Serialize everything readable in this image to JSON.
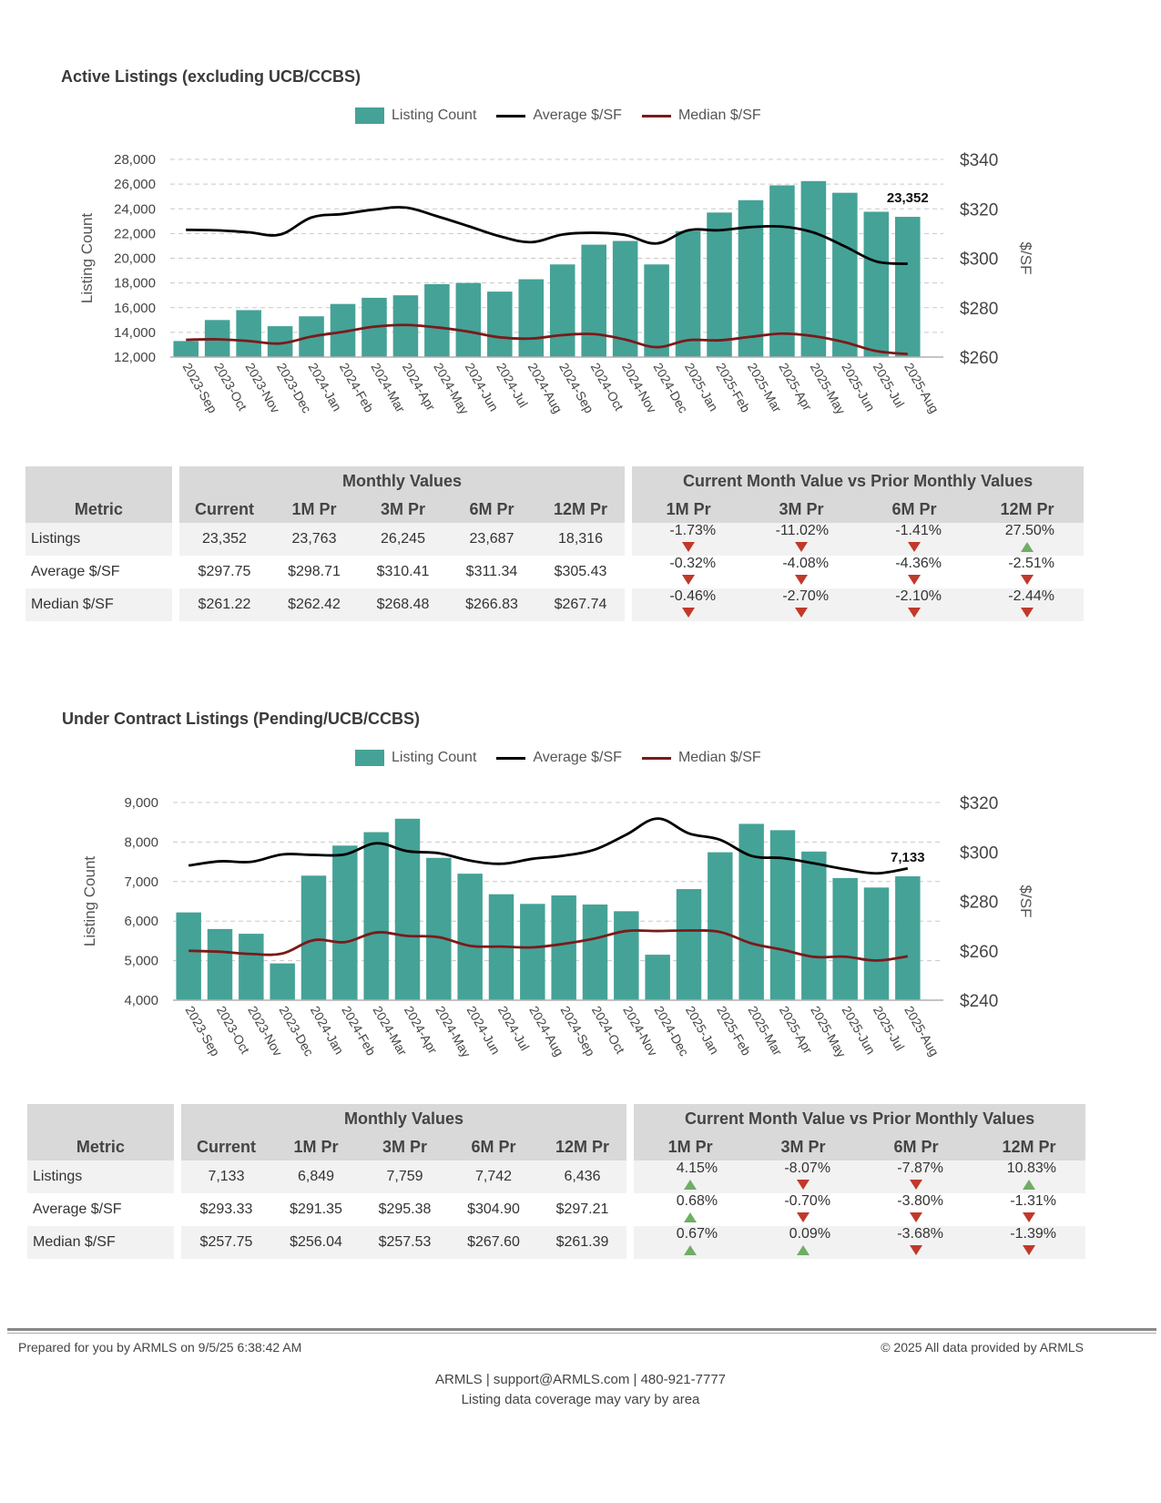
{
  "colors": {
    "bar": "#45a297",
    "average": "#000000",
    "median": "#7b1a1a",
    "up": "#70ad65",
    "down": "#c0392b"
  },
  "legend": {
    "bar_label": "Listing Count",
    "avg_label": "Average $/SF",
    "median_label": "Median $/SF"
  },
  "table_headers": {
    "metric": "Metric",
    "monthly_values": "Monthly Values",
    "comparison": "Current Month Value vs Prior Monthly Values",
    "current": "Current",
    "m1": "1M Pr",
    "m3": "3M Pr",
    "m6": "6M Pr",
    "m12": "12M Pr"
  },
  "chart_data": [
    {
      "type": "bar",
      "title": "Active Listings (excluding UCB/CCBS)",
      "categories": [
        "2023-Sep",
        "2023-Oct",
        "2023-Nov",
        "2023-Dec",
        "2024-Jan",
        "2024-Feb",
        "2024-Mar",
        "2024-Apr",
        "2024-May",
        "2024-Jun",
        "2024-Jul",
        "2024-Aug",
        "2024-Sep",
        "2024-Oct",
        "2024-Nov",
        "2024-Dec",
        "2025-Jan",
        "2025-Feb",
        "2025-Mar",
        "2025-Apr",
        "2025-May",
        "2025-Jun",
        "2025-Jul",
        "2025-Aug"
      ],
      "series": [
        {
          "name": "Listing Count",
          "type": "bar",
          "axis": "left",
          "values": [
            13300,
            15000,
            15800,
            14500,
            15300,
            16300,
            16800,
            17000,
            17900,
            18000,
            17300,
            18300,
            19500,
            21100,
            21400,
            19500,
            22200,
            23700,
            24700,
            25900,
            26245,
            25300,
            23763,
            23352
          ]
        },
        {
          "name": "Average $/SF",
          "type": "line",
          "axis": "right",
          "values": [
            311.5,
            311.3,
            310.5,
            309.6,
            316.5,
            317.9,
            319.7,
            320.5,
            317.0,
            313.0,
            308.9,
            306.5,
            309.6,
            310.3,
            309.4,
            306.0,
            311.3,
            311.34,
            312.6,
            312.8,
            310.41,
            304.8,
            298.71,
            297.75
          ]
        },
        {
          "name": "Median $/SF",
          "type": "line",
          "axis": "right",
          "values": [
            267.0,
            267.2,
            266.5,
            265.5,
            268.3,
            270.2,
            272.3,
            273.0,
            272.0,
            270.3,
            268.0,
            267.5,
            268.9,
            269.3,
            267.1,
            264.0,
            266.83,
            266.8,
            268.2,
            269.5,
            268.48,
            266.0,
            262.42,
            261.22
          ]
        }
      ],
      "ylabel": "Listing Count",
      "y2label": "$/SF",
      "ylim": [
        12000,
        28000
      ],
      "y2lim": [
        260,
        340
      ],
      "yticks": [
        "28,000",
        "26,000",
        "24,000",
        "22,000",
        "20,000",
        "18,000",
        "16,000",
        "14,000",
        "12,000"
      ],
      "y2ticks": [
        "$340",
        "$320",
        "$300",
        "$280",
        "$260"
      ],
      "annotation": "23,352",
      "grid": true,
      "legend": "top-center"
    },
    {
      "type": "bar",
      "title": "Under Contract Listings (Pending/UCB/CCBS)",
      "categories": [
        "2023-Sep",
        "2023-Oct",
        "2023-Nov",
        "2023-Dec",
        "2024-Jan",
        "2024-Feb",
        "2024-Mar",
        "2024-Apr",
        "2024-May",
        "2024-Jun",
        "2024-Jul",
        "2024-Aug",
        "2024-Sep",
        "2024-Oct",
        "2024-Nov",
        "2024-Dec",
        "2025-Jan",
        "2025-Feb",
        "2025-Mar",
        "2025-Apr",
        "2025-May",
        "2025-Jun",
        "2025-Jul",
        "2025-Aug"
      ],
      "series": [
        {
          "name": "Listing Count",
          "type": "bar",
          "axis": "left",
          "values": [
            6220,
            5800,
            5680,
            4930,
            7150,
            7910,
            8250,
            8590,
            7600,
            7200,
            6680,
            6436,
            6650,
            6420,
            6250,
            5150,
            6810,
            7742,
            8460,
            8300,
            7759,
            7090,
            6849,
            7133
          ]
        },
        {
          "name": "Average $/SF",
          "type": "line",
          "axis": "right",
          "values": [
            294.5,
            296.2,
            296.0,
            299.0,
            298.8,
            299.0,
            303.5,
            300.3,
            299.5,
            296.5,
            295.2,
            297.21,
            298.5,
            301.0,
            307.0,
            313.5,
            307.5,
            304.9,
            298.4,
            297.5,
            295.38,
            293.0,
            291.35,
            293.33
          ]
        },
        {
          "name": "Median $/SF",
          "type": "line",
          "axis": "right",
          "values": [
            260.0,
            259.6,
            258.7,
            258.9,
            264.3,
            263.5,
            267.4,
            266.0,
            265.5,
            262.0,
            261.7,
            261.39,
            262.8,
            265.0,
            268.0,
            268.0,
            268.2,
            267.6,
            263.0,
            260.4,
            257.53,
            257.6,
            256.04,
            257.75
          ]
        }
      ],
      "ylabel": "Listing Count",
      "y2label": "$/SF",
      "ylim": [
        4000,
        9000
      ],
      "y2lim": [
        240,
        320
      ],
      "yticks": [
        "9,000",
        "8,000",
        "7,000",
        "6,000",
        "5,000",
        "4,000"
      ],
      "y2ticks": [
        "$320",
        "$300",
        "$280",
        "$260",
        "$240"
      ],
      "annotation": "7,133",
      "grid": true,
      "legend": "top-center"
    }
  ],
  "tables": [
    {
      "rows": [
        {
          "metric": "Listings",
          "current": "23,352",
          "m1": "23,763",
          "m3": "26,245",
          "m6": "23,687",
          "m12": "18,316",
          "c1": "-1.73%",
          "d1": "down",
          "c3": "-11.02%",
          "d3": "down",
          "c6": "-1.41%",
          "d6": "down",
          "c12": "27.50%",
          "d12": "up"
        },
        {
          "metric": "Average $/SF",
          "current": "$297.75",
          "m1": "$298.71",
          "m3": "$310.41",
          "m6": "$311.34",
          "m12": "$305.43",
          "c1": "-0.32%",
          "d1": "down",
          "c3": "-4.08%",
          "d3": "down",
          "c6": "-4.36%",
          "d6": "down",
          "c12": "-2.51%",
          "d12": "down"
        },
        {
          "metric": "Median $/SF",
          "current": "$261.22",
          "m1": "$262.42",
          "m3": "$268.48",
          "m6": "$266.83",
          "m12": "$267.74",
          "c1": "-0.46%",
          "d1": "down",
          "c3": "-2.70%",
          "d3": "down",
          "c6": "-2.10%",
          "d6": "down",
          "c12": "-2.44%",
          "d12": "down"
        }
      ]
    },
    {
      "rows": [
        {
          "metric": "Listings",
          "current": "7,133",
          "m1": "6,849",
          "m3": "7,759",
          "m6": "7,742",
          "m12": "6,436",
          "c1": "4.15%",
          "d1": "up",
          "c3": "-8.07%",
          "d3": "down",
          "c6": "-7.87%",
          "d6": "down",
          "c12": "10.83%",
          "d12": "up"
        },
        {
          "metric": "Average $/SF",
          "current": "$293.33",
          "m1": "$291.35",
          "m3": "$295.38",
          "m6": "$304.90",
          "m12": "$297.21",
          "c1": "0.68%",
          "d1": "up",
          "c3": "-0.70%",
          "d3": "down",
          "c6": "-3.80%",
          "d6": "down",
          "c12": "-1.31%",
          "d12": "down"
        },
        {
          "metric": "Median $/SF",
          "current": "$257.75",
          "m1": "$256.04",
          "m3": "$257.53",
          "m6": "$267.60",
          "m12": "$261.39",
          "c1": "0.67%",
          "d1": "up",
          "c3": "0.09%",
          "d3": "up",
          "c6": "-3.68%",
          "d6": "down",
          "c12": "-1.39%",
          "d12": "down"
        }
      ]
    }
  ],
  "footer": {
    "prepared": "Prepared for you by ARMLS on 9/5/25 6:38:42 AM",
    "copyright": "© 2025 All data provided by ARMLS",
    "contact": "ARMLS | support@ARMLS.com | 480-921-7777",
    "coverage": "Listing data coverage may vary by area"
  }
}
